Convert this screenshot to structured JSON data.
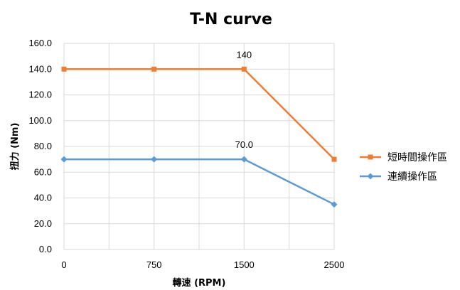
{
  "chart_data": {
    "type": "line",
    "title": "T-N curve",
    "xlabel": "轉速 (RPM)",
    "ylabel": "扭力 (Nm)",
    "categories": [
      "0",
      "750",
      "1500",
      "2500"
    ],
    "ylim": [
      0,
      160
    ],
    "yticks": [
      "0.0",
      "20.0",
      "40.0",
      "60.0",
      "80.0",
      "100.0",
      "120.0",
      "140.0",
      "160.0"
    ],
    "grid": true,
    "legend_position": "right",
    "series": [
      {
        "name": "短時間操作區",
        "values": [
          140,
          140,
          140,
          70
        ],
        "color": "#ed7d31",
        "marker": "square",
        "data_labels": [
          {
            "index": 2,
            "text": "140"
          }
        ]
      },
      {
        "name": "連續操作區",
        "values": [
          70,
          70,
          70,
          35
        ],
        "color": "#5b9bd5",
        "marker": "diamond",
        "data_labels": [
          {
            "index": 2,
            "text": "70.0"
          }
        ]
      }
    ]
  }
}
